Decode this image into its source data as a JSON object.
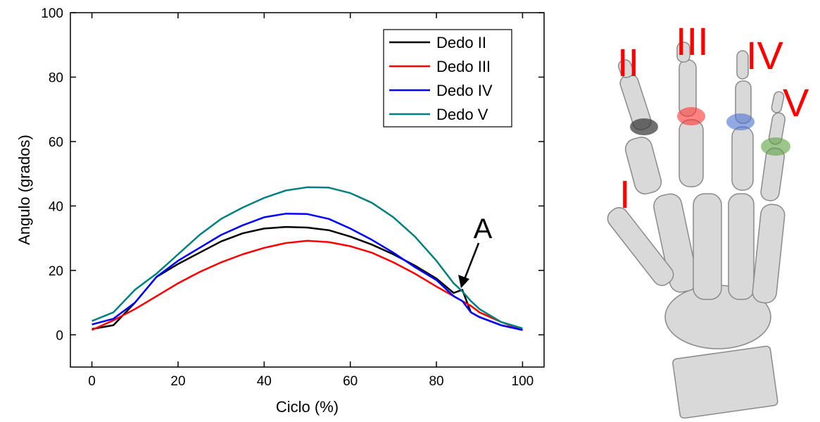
{
  "chart_data": {
    "type": "line",
    "x_label": "Ciclo (%)",
    "y_label": "Angulo (grados)",
    "x": [
      0,
      5,
      10,
      15,
      20,
      25,
      30,
      35,
      40,
      45,
      50,
      55,
      60,
      65,
      70,
      75,
      80,
      84,
      86,
      88,
      90,
      95,
      100
    ],
    "series": [
      {
        "name": "Dedo II",
        "color": "#000000",
        "values": [
          1.8,
          3,
          10,
          18,
          22,
          25.5,
          29,
          31.5,
          33,
          33.5,
          33.3,
          32.5,
          30.5,
          28,
          25,
          21.5,
          17.5,
          13,
          14,
          7,
          5.5,
          3,
          1.5
        ]
      },
      {
        "name": "Dedo III",
        "color": "#ff0000",
        "values": [
          1.5,
          4.5,
          8,
          12,
          16,
          19.5,
          22.5,
          25,
          27,
          28.5,
          29.2,
          28.8,
          27.5,
          25.5,
          22.5,
          19,
          15,
          12,
          10.5,
          9,
          7,
          4,
          1.5
        ]
      },
      {
        "name": "Dedo IV",
        "color": "#0000ff",
        "values": [
          3.2,
          5,
          10,
          18,
          23,
          27,
          31,
          34,
          36.5,
          37.6,
          37.5,
          36,
          33,
          29.5,
          25.5,
          21,
          17,
          12,
          10.5,
          7,
          5.5,
          3,
          1.5
        ]
      },
      {
        "name": "Dedo V",
        "color": "#008080",
        "values": [
          4.3,
          7,
          14,
          19,
          25,
          31,
          36,
          39.5,
          42.5,
          44.8,
          45.8,
          45.7,
          44,
          41,
          36.5,
          30.5,
          23,
          16,
          13.5,
          10.5,
          8,
          4,
          2
        ]
      }
    ],
    "xlim": [
      -5,
      105
    ],
    "ylim": [
      -10,
      100
    ],
    "xticks": [
      0,
      20,
      40,
      60,
      80,
      100
    ],
    "yticks": [
      0,
      20,
      40,
      60,
      80,
      100
    ],
    "legend": "upper right",
    "annotations": [
      "A"
    ]
  },
  "figure": {
    "labels": [
      "I",
      "II",
      "III",
      "IV",
      "V"
    ]
  }
}
